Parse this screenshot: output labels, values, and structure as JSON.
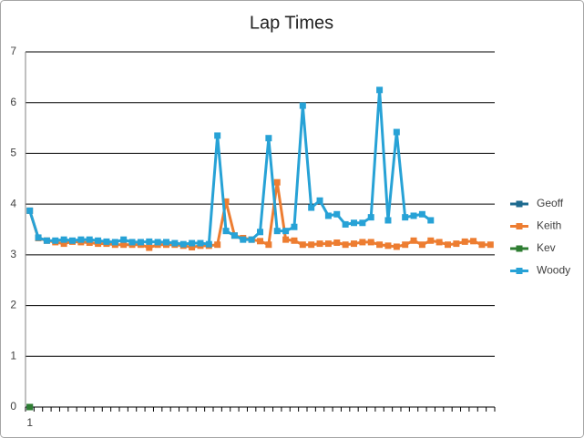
{
  "chart_data": {
    "type": "line",
    "title": "Lap Times",
    "categories": [
      "1",
      null,
      null,
      null,
      null,
      null,
      null,
      null,
      null,
      null,
      null,
      null,
      null,
      null,
      null,
      null,
      null,
      null,
      null,
      null,
      null,
      null,
      null,
      null,
      null,
      null,
      null,
      null,
      null,
      null,
      null,
      null,
      null,
      null,
      null,
      null,
      null,
      null,
      null,
      null,
      null,
      null,
      null,
      null,
      null,
      null,
      null,
      null,
      null,
      null,
      null,
      null,
      null,
      null,
      null
    ],
    "series": [
      {
        "name": "Geoff",
        "color": "#1d6a8f",
        "values": [
          0,
          null,
          null,
          null,
          null,
          null,
          null,
          null,
          null,
          null,
          null,
          null,
          null,
          null,
          null,
          null,
          null,
          null,
          null,
          null,
          null,
          null,
          null,
          null,
          null,
          null,
          null,
          null,
          null,
          null,
          null,
          null,
          null,
          null,
          null,
          null,
          null,
          null,
          null,
          null,
          null,
          null,
          null,
          null,
          null,
          null,
          null,
          null,
          null,
          null,
          null,
          null,
          null,
          null,
          null
        ]
      },
      {
        "name": "Keith",
        "color": "#ed7d31",
        "values": [
          3.87,
          3.33,
          3.28,
          3.25,
          3.22,
          3.26,
          3.25,
          3.24,
          3.22,
          3.22,
          3.2,
          3.2,
          3.2,
          3.2,
          3.14,
          3.2,
          3.2,
          3.2,
          3.18,
          3.15,
          3.18,
          3.18,
          3.2,
          4.05,
          3.38,
          3.33,
          3.3,
          3.27,
          3.2,
          4.43,
          3.3,
          3.28,
          3.2,
          3.2,
          3.22,
          3.22,
          3.24,
          3.2,
          3.22,
          3.25,
          3.25,
          3.2,
          3.18,
          3.16,
          3.2,
          3.28,
          3.2,
          3.28,
          3.25,
          3.2,
          3.22,
          3.26,
          3.27,
          3.2,
          3.2
        ]
      },
      {
        "name": "Kev",
        "color": "#2e7d32",
        "values": [
          0,
          null,
          null,
          null,
          null,
          null,
          null,
          null,
          null,
          null,
          null,
          null,
          null,
          null,
          null,
          null,
          null,
          null,
          null,
          null,
          null,
          null,
          null,
          null,
          null,
          null,
          null,
          null,
          null,
          null,
          null,
          null,
          null,
          null,
          null,
          null,
          null,
          null,
          null,
          null,
          null,
          null,
          null,
          null,
          null,
          null,
          null,
          null,
          null,
          null,
          null,
          null,
          null,
          null,
          null
        ]
      },
      {
        "name": "Woody",
        "color": "#27a2d6",
        "values": [
          3.87,
          3.34,
          3.28,
          3.28,
          3.3,
          3.28,
          3.3,
          3.3,
          3.28,
          3.26,
          3.25,
          3.3,
          3.25,
          3.25,
          3.26,
          3.25,
          3.25,
          3.23,
          3.21,
          3.23,
          3.23,
          3.21,
          5.35,
          3.47,
          3.38,
          3.3,
          3.3,
          3.45,
          5.3,
          3.47,
          3.47,
          3.55,
          5.94,
          3.93,
          4.07,
          3.77,
          3.8,
          3.6,
          3.63,
          3.63,
          3.74,
          6.25,
          3.68,
          5.42,
          3.74,
          3.77,
          3.8,
          3.68,
          null,
          null,
          null,
          null,
          null,
          null,
          null
        ]
      }
    ],
    "ylim": [
      0,
      7
    ],
    "yticks": [
      0,
      1,
      2,
      3,
      4,
      5,
      6,
      7
    ],
    "grid": true,
    "legend": "right"
  }
}
